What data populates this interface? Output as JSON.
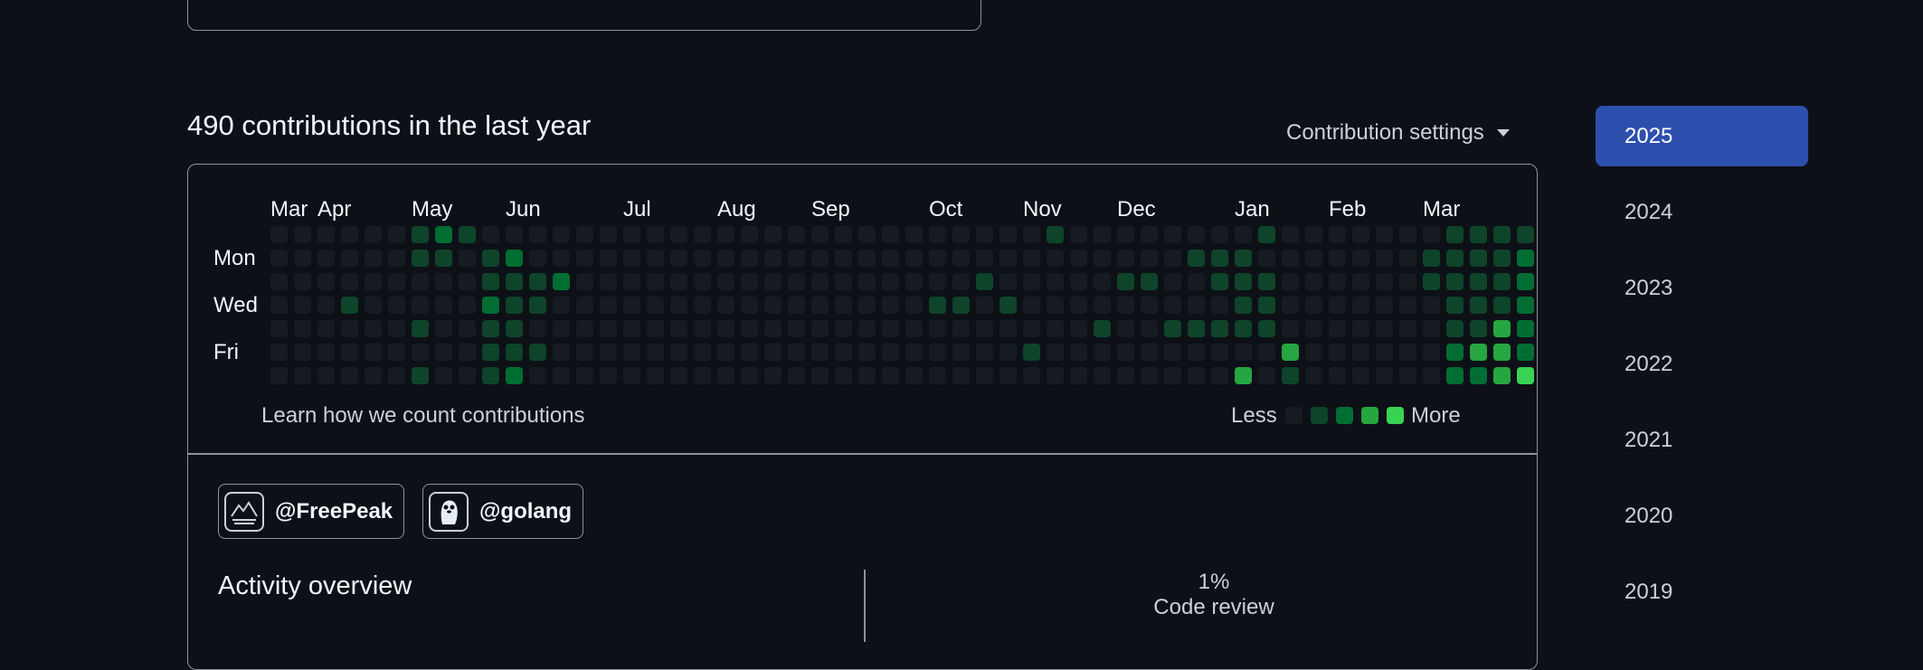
{
  "contributions": {
    "title": "490 contributions in the last year",
    "settings_label": "Contribution settings",
    "months": [
      {
        "label": "Mar",
        "col": 0
      },
      {
        "label": "Apr",
        "col": 2
      },
      {
        "label": "May",
        "col": 6
      },
      {
        "label": "Jun",
        "col": 10
      },
      {
        "label": "Jul",
        "col": 15
      },
      {
        "label": "Aug",
        "col": 19
      },
      {
        "label": "Sep",
        "col": 23
      },
      {
        "label": "Oct",
        "col": 28
      },
      {
        "label": "Nov",
        "col": 32
      },
      {
        "label": "Dec",
        "col": 36
      },
      {
        "label": "Jan",
        "col": 41
      },
      {
        "label": "Feb",
        "col": 45
      },
      {
        "label": "Mar",
        "col": 49
      }
    ],
    "day_labels": [
      "Mon",
      "Wed",
      "Fri"
    ],
    "grid": [
      "000000121000000000000000000000000100000000100000001111",
      "000000110120000000000000000000000000000111000000011112",
      "000000000111200000000000000000100000110011100000011112",
      "000100000211000000000000000011010000000001100000001112",
      "000000100110000000000000000000000001001111100000001132",
      "000000000111000000000000000000001000000000030000002332",
      "000000100120000000000000000000000000000003010000002234"
    ],
    "learn_link": "Learn how we count contributions",
    "legend": {
      "less": "Less",
      "more": "More"
    },
    "colors": [
      "#161b22",
      "#0e4429",
      "#006d32",
      "#26a641",
      "#39d353"
    ]
  },
  "organizations": [
    {
      "name": "@FreePeak",
      "icon": "mountain-logo-icon"
    },
    {
      "name": "@golang",
      "icon": "gopher-logo-icon"
    }
  ],
  "activity": {
    "title": "Activity overview",
    "code_review_pct": "1%",
    "code_review_label": "Code review"
  },
  "years": [
    "2025",
    "2024",
    "2023",
    "2022",
    "2021",
    "2020",
    "2019"
  ],
  "active_year": "2025",
  "accent_color": "#2f4fae"
}
